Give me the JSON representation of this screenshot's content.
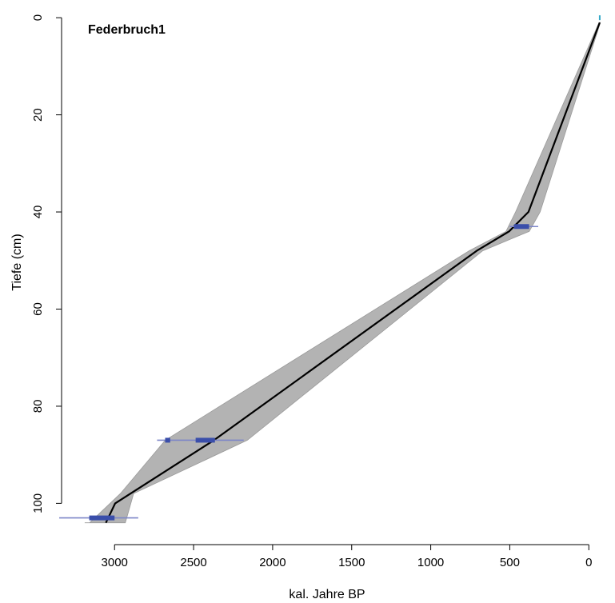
{
  "chart_data": {
    "type": "line",
    "title": "Federbruch1",
    "xlabel": "kal. Jahre BP",
    "ylabel": "Tiefe (cm)",
    "x_reversed": true,
    "y_reversed": true,
    "xlim": [
      3335,
      -120
    ],
    "ylim": [
      -2,
      108.5
    ],
    "x_ticks": [
      3000,
      2500,
      2000,
      1500,
      1000,
      500,
      0
    ],
    "y_ticks": [
      0,
      20,
      40,
      60,
      80,
      100
    ],
    "grid": false,
    "colors": {
      "median_line": "#000000",
      "uncertainty_band": "#b3b3b3",
      "dated_level_bar": "#3a4eaa",
      "calibration_range": "#7d86c8",
      "surface_marker": "#35a9c9"
    },
    "series": [
      {
        "name": "",
        "x": [
          -69,
          382,
          504,
          709,
          2371,
          2996,
          3055
        ],
        "y": [
          1,
          40,
          44,
          48,
          87,
          100,
          104
        ]
      }
    ],
    "uncertainty_band": {
      "upper_x": [
        -73,
        308,
        377,
        671,
        2160,
        2879,
        2932,
        2999
      ],
      "lower_x": [
        -65,
        463,
        524,
        757,
        2679,
        2963,
        3158,
        3189
      ],
      "y": [
        1,
        40,
        44,
        48,
        87,
        98,
        104,
        104
      ]
    },
    "dated_levels": [
      {
        "depth": 43,
        "calibrated_ranges": [
          [
            320,
            500
          ]
        ],
        "high_probability": [
          [
            378,
            473
          ]
        ]
      },
      {
        "depth": 87,
        "calibrated_ranges": [
          [
            2183,
            2731
          ]
        ],
        "high_probability": [
          [
            2648,
            2680
          ],
          [
            2365,
            2487
          ]
        ]
      },
      {
        "depth": 103,
        "calibrated_ranges": [
          [
            2850,
            3350
          ]
        ],
        "high_probability": [
          [
            3000,
            3160
          ]
        ]
      }
    ],
    "surface_marker": {
      "x": -69,
      "y": 0
    }
  }
}
